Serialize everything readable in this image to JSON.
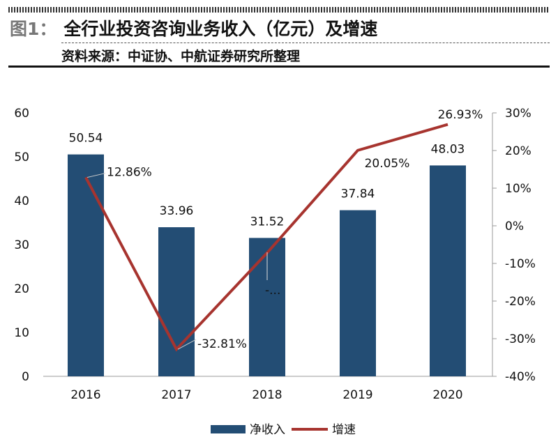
{
  "header": {
    "figure_label": "图1：",
    "title": "全行业投资咨询业务收入（亿元）及增速",
    "source": "资料来源：中证协、中航证券研究所整理"
  },
  "chart_data": {
    "type": "bar+line",
    "categories": [
      "2016",
      "2017",
      "2018",
      "2019",
      "2020"
    ],
    "series": [
      {
        "name": "净收入",
        "type": "bar",
        "axis": "left",
        "values": [
          50.54,
          33.96,
          31.52,
          37.84,
          48.03
        ],
        "labels": [
          "50.54",
          "33.96",
          "31.52",
          "37.84",
          "48.03"
        ],
        "color": "#234d74"
      },
      {
        "name": "增速",
        "type": "line",
        "axis": "right",
        "values": [
          12.86,
          -32.81,
          -7.18,
          20.05,
          26.93
        ],
        "labels": [
          "12.86%",
          "-32.81%",
          "-...",
          "20.05%",
          "26.93%"
        ],
        "color": "#a7342f"
      }
    ],
    "left_axis": {
      "ylim": [
        0,
        60
      ],
      "ticks": [
        "0",
        "10",
        "20",
        "30",
        "40",
        "50",
        "60"
      ]
    },
    "right_axis": {
      "ylim": [
        -40,
        30
      ],
      "ticks": [
        "-40%",
        "-30%",
        "-20%",
        "-10%",
        "0%",
        "10%",
        "20%",
        "30%"
      ]
    },
    "legend": "bottom",
    "grid": false
  }
}
